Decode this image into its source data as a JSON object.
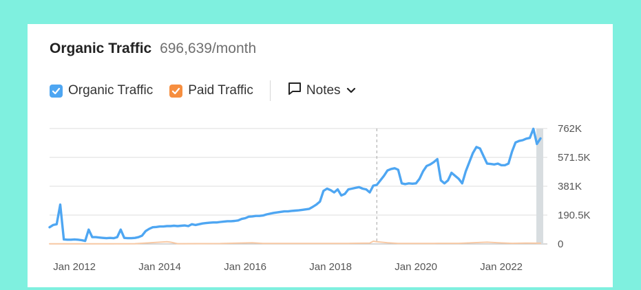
{
  "header": {
    "title": "Organic Traffic",
    "value": "696,639/month"
  },
  "legend": {
    "organic_label": "Organic Traffic",
    "paid_label": "Paid Traffic",
    "notes_label": "Notes",
    "notes_icon": "comment-icon",
    "chevron_icon": "chevron-down-icon"
  },
  "colors": {
    "background": "#7ff0df",
    "organic": "#4ea6f2",
    "paid": "#f68e3f",
    "paid_line": "#f8c9a4"
  },
  "chart_data": {
    "type": "line",
    "title": "Organic Traffic",
    "ylim": [
      0,
      762000
    ],
    "y_ticks": [
      {
        "value": 0,
        "label": "0"
      },
      {
        "value": 190500,
        "label": "190.5K"
      },
      {
        "value": 381000,
        "label": "381K"
      },
      {
        "value": 571500,
        "label": "571.5K"
      },
      {
        "value": 762000,
        "label": "762K"
      }
    ],
    "x_range": [
      "2011-06",
      "2022-12"
    ],
    "x_ticks": [
      {
        "value": "2012-01",
        "label": "Jan 2012"
      },
      {
        "value": "2014-01",
        "label": "Jan 2014"
      },
      {
        "value": "2016-01",
        "label": "Jan 2016"
      },
      {
        "value": "2018-01",
        "label": "Jan 2018"
      },
      {
        "value": "2020-01",
        "label": "Jan 2020"
      },
      {
        "value": "2022-01",
        "label": "Jan 2022"
      }
    ],
    "grid": true,
    "marker_date": "2019-02",
    "series": [
      {
        "name": "Organic Traffic",
        "color": "#4ea6f2",
        "points": [
          [
            "2011-06",
            110000
          ],
          [
            "2011-07",
            125000
          ],
          [
            "2011-08",
            130000
          ],
          [
            "2011-09",
            260000
          ],
          [
            "2011-10",
            30000
          ],
          [
            "2011-11",
            28000
          ],
          [
            "2011-12",
            28000
          ],
          [
            "2012-01",
            30000
          ],
          [
            "2012-02",
            28000
          ],
          [
            "2012-03",
            25000
          ],
          [
            "2012-04",
            20000
          ],
          [
            "2012-05",
            95000
          ],
          [
            "2012-06",
            45000
          ],
          [
            "2012-07",
            45000
          ],
          [
            "2012-08",
            42000
          ],
          [
            "2012-09",
            40000
          ],
          [
            "2012-10",
            38000
          ],
          [
            "2012-11",
            40000
          ],
          [
            "2012-12",
            38000
          ],
          [
            "2013-01",
            45000
          ],
          [
            "2013-02",
            95000
          ],
          [
            "2013-03",
            40000
          ],
          [
            "2013-04",
            38000
          ],
          [
            "2013-05",
            38000
          ],
          [
            "2013-06",
            40000
          ],
          [
            "2013-07",
            45000
          ],
          [
            "2013-08",
            55000
          ],
          [
            "2013-09",
            85000
          ],
          [
            "2013-10",
            100000
          ],
          [
            "2013-11",
            110000
          ],
          [
            "2013-12",
            112000
          ],
          [
            "2014-01",
            115000
          ],
          [
            "2014-02",
            115000
          ],
          [
            "2014-03",
            118000
          ],
          [
            "2014-04",
            118000
          ],
          [
            "2014-05",
            120000
          ],
          [
            "2014-06",
            118000
          ],
          [
            "2014-07",
            120000
          ],
          [
            "2014-08",
            122000
          ],
          [
            "2014-09",
            118000
          ],
          [
            "2014-10",
            130000
          ],
          [
            "2014-11",
            125000
          ],
          [
            "2014-12",
            130000
          ],
          [
            "2015-01",
            135000
          ],
          [
            "2015-02",
            138000
          ],
          [
            "2015-03",
            140000
          ],
          [
            "2015-04",
            142000
          ],
          [
            "2015-05",
            142000
          ],
          [
            "2015-06",
            145000
          ],
          [
            "2015-07",
            148000
          ],
          [
            "2015-08",
            150000
          ],
          [
            "2015-09",
            150000
          ],
          [
            "2015-10",
            152000
          ],
          [
            "2015-11",
            155000
          ],
          [
            "2015-12",
            165000
          ],
          [
            "2016-01",
            170000
          ],
          [
            "2016-02",
            180000
          ],
          [
            "2016-03",
            182000
          ],
          [
            "2016-04",
            185000
          ],
          [
            "2016-05",
            185000
          ],
          [
            "2016-06",
            188000
          ],
          [
            "2016-07",
            195000
          ],
          [
            "2016-08",
            200000
          ],
          [
            "2016-09",
            205000
          ],
          [
            "2016-10",
            208000
          ],
          [
            "2016-11",
            212000
          ],
          [
            "2016-12",
            215000
          ],
          [
            "2017-01",
            215000
          ],
          [
            "2017-02",
            218000
          ],
          [
            "2017-03",
            220000
          ],
          [
            "2017-04",
            222000
          ],
          [
            "2017-05",
            225000
          ],
          [
            "2017-06",
            228000
          ],
          [
            "2017-07",
            232000
          ],
          [
            "2017-08",
            245000
          ],
          [
            "2017-09",
            260000
          ],
          [
            "2017-10",
            280000
          ],
          [
            "2017-11",
            350000
          ],
          [
            "2017-12",
            365000
          ],
          [
            "2018-01",
            355000
          ],
          [
            "2018-02",
            340000
          ],
          [
            "2018-03",
            360000
          ],
          [
            "2018-04",
            320000
          ],
          [
            "2018-05",
            330000
          ],
          [
            "2018-06",
            360000
          ],
          [
            "2018-07",
            365000
          ],
          [
            "2018-08",
            370000
          ],
          [
            "2018-09",
            375000
          ],
          [
            "2018-10",
            365000
          ],
          [
            "2018-11",
            360000
          ],
          [
            "2018-12",
            340000
          ],
          [
            "2019-01",
            385000
          ],
          [
            "2019-02",
            390000
          ],
          [
            "2019-03",
            420000
          ],
          [
            "2019-04",
            450000
          ],
          [
            "2019-05",
            485000
          ],
          [
            "2019-06",
            495000
          ],
          [
            "2019-07",
            500000
          ],
          [
            "2019-08",
            490000
          ],
          [
            "2019-09",
            400000
          ],
          [
            "2019-10",
            395000
          ],
          [
            "2019-11",
            400000
          ],
          [
            "2019-12",
            398000
          ],
          [
            "2020-01",
            400000
          ],
          [
            "2020-02",
            430000
          ],
          [
            "2020-03",
            480000
          ],
          [
            "2020-04",
            515000
          ],
          [
            "2020-05",
            525000
          ],
          [
            "2020-06",
            540000
          ],
          [
            "2020-07",
            560000
          ],
          [
            "2020-08",
            420000
          ],
          [
            "2020-09",
            400000
          ],
          [
            "2020-10",
            420000
          ],
          [
            "2020-11",
            470000
          ],
          [
            "2020-12",
            450000
          ],
          [
            "2021-01",
            430000
          ],
          [
            "2021-02",
            400000
          ],
          [
            "2021-03",
            480000
          ],
          [
            "2021-04",
            540000
          ],
          [
            "2021-05",
            600000
          ],
          [
            "2021-06",
            640000
          ],
          [
            "2021-07",
            630000
          ],
          [
            "2021-08",
            580000
          ],
          [
            "2021-09",
            530000
          ],
          [
            "2021-10",
            528000
          ],
          [
            "2021-11",
            525000
          ],
          [
            "2021-12",
            530000
          ],
          [
            "2022-01",
            520000
          ],
          [
            "2022-02",
            520000
          ],
          [
            "2022-03",
            530000
          ],
          [
            "2022-04",
            610000
          ],
          [
            "2022-05",
            670000
          ],
          [
            "2022-06",
            680000
          ],
          [
            "2022-07",
            685000
          ],
          [
            "2022-08",
            695000
          ],
          [
            "2022-09",
            700000
          ],
          [
            "2022-10",
            760000
          ],
          [
            "2022-11",
            660000
          ],
          [
            "2022-12",
            696639
          ]
        ]
      },
      {
        "name": "Paid Traffic",
        "color": "#f8c9a4",
        "points": [
          [
            "2011-06",
            1000
          ],
          [
            "2012-06",
            1500
          ],
          [
            "2013-06",
            2000
          ],
          [
            "2014-03",
            15000
          ],
          [
            "2014-04",
            12000
          ],
          [
            "2014-06",
            2000
          ],
          [
            "2015-06",
            2500
          ],
          [
            "2016-03",
            8000
          ],
          [
            "2016-06",
            3000
          ],
          [
            "2017-01",
            3000
          ],
          [
            "2017-06",
            3500
          ],
          [
            "2018-01",
            3000
          ],
          [
            "2018-06",
            3500
          ],
          [
            "2018-12",
            6000
          ],
          [
            "2019-01",
            18000
          ],
          [
            "2019-02",
            15000
          ],
          [
            "2019-05",
            8000
          ],
          [
            "2019-08",
            3000
          ],
          [
            "2020-06",
            3500
          ],
          [
            "2021-01",
            4000
          ],
          [
            "2021-06",
            9000
          ],
          [
            "2021-09",
            12000
          ],
          [
            "2021-12",
            8000
          ],
          [
            "2022-04",
            4000
          ],
          [
            "2022-08",
            6000
          ],
          [
            "2022-12",
            5000
          ]
        ]
      }
    ]
  }
}
